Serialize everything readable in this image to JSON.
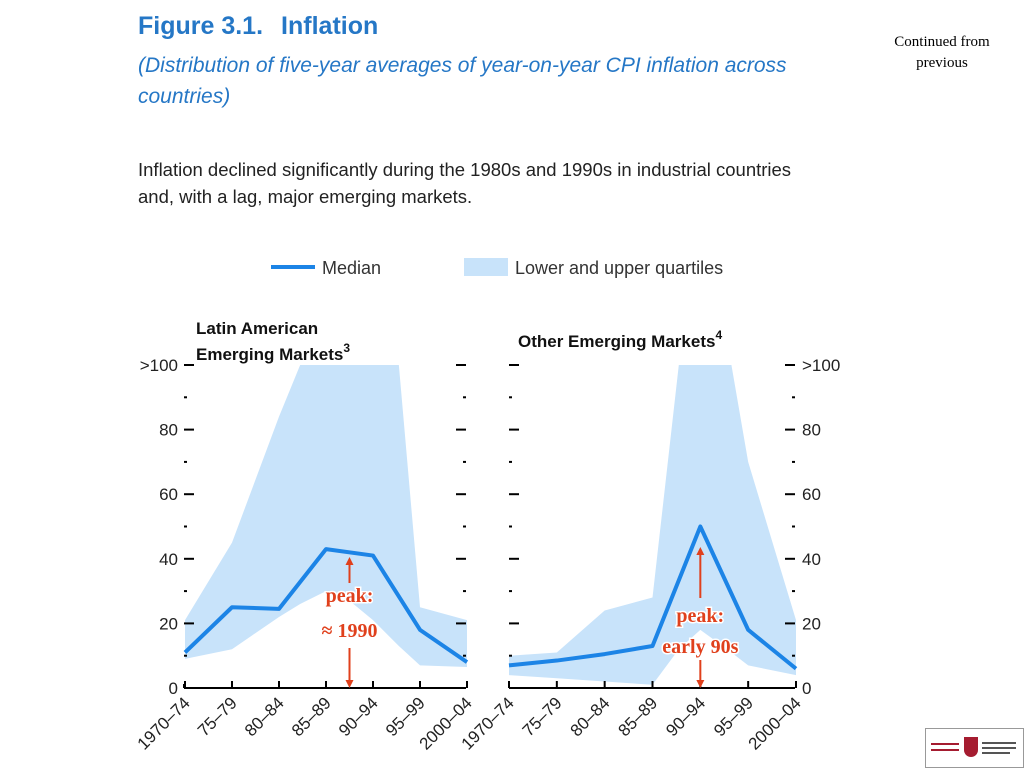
{
  "figure": {
    "number": "Figure 3.1.",
    "title": "Inflation",
    "subtitle": "(Distribution of five-year averages of year-on-year CPI inflation across countries)",
    "intro": "Inflation declined significantly during the 1980s and 1990s in industrial countries and, with a lag, major emerging markets."
  },
  "continued_note": "Continued from previous",
  "legend": {
    "median": "Median",
    "quartiles": "Lower and upper quartiles"
  },
  "colors": {
    "title": "#2577c6",
    "median_line": "#1c84e6",
    "quartile_band": "#c8e3fa",
    "annotation": "#e0401c",
    "axis": "#000000"
  },
  "chart_data": [
    {
      "type": "area",
      "title": "Latin American Emerging Markets",
      "title_lines": [
        "Latin American",
        "Emerging Markets"
      ],
      "footnote": "3",
      "y_axis_side": "left",
      "categories": [
        "1970–74",
        "75–79",
        "80–84",
        "85–89",
        "90–94",
        "95–99",
        "2000–04"
      ],
      "ylim": [
        0,
        100
      ],
      "y_ticks": [
        "0",
        "20",
        "40",
        "60",
        "80",
        ">100"
      ],
      "series": [
        {
          "name": "Median",
          "values": [
            11,
            25,
            24.5,
            43,
            41,
            18,
            8
          ]
        }
      ],
      "band": {
        "name": "Lower and upper quartiles",
        "x": [
          0,
          1,
          2,
          2.45,
          3,
          3.5,
          4,
          4.55,
          5,
          6
        ],
        "upper": [
          21,
          45,
          84,
          100,
          100,
          100,
          100,
          100,
          25,
          21
        ],
        "lower": [
          9,
          12,
          22,
          26,
          30,
          27,
          21,
          13,
          7,
          6.5
        ]
      },
      "annotation": {
        "lines": [
          "peak:",
          "≈ 1990"
        ],
        "x": 3.5
      }
    },
    {
      "type": "area",
      "title": "Other Emerging Markets",
      "title_lines": [
        "Other Emerging Markets"
      ],
      "footnote": "4",
      "y_axis_side": "right",
      "categories": [
        "1970–74",
        "75–79",
        "80–84",
        "85–89",
        "90–94",
        "95–99",
        "2000–04"
      ],
      "ylim": [
        0,
        100
      ],
      "y_ticks": [
        "0",
        "20",
        "40",
        "60",
        "80",
        ">100"
      ],
      "series": [
        {
          "name": "Median",
          "values": [
            7,
            8.5,
            10.5,
            13,
            50,
            18,
            6
          ]
        }
      ],
      "band": {
        "name": "Lower and upper quartiles",
        "x": [
          0,
          1,
          2,
          3,
          3.55,
          4,
          4.65,
          5,
          6
        ],
        "upper": [
          10,
          11,
          24,
          28,
          100,
          100,
          100,
          70,
          21
        ],
        "lower": [
          4,
          3,
          2,
          1,
          12,
          18,
          11,
          7,
          4
        ]
      },
      "annotation": {
        "lines": [
          "peak:",
          "early 90s"
        ],
        "x": 4
      }
    }
  ]
}
